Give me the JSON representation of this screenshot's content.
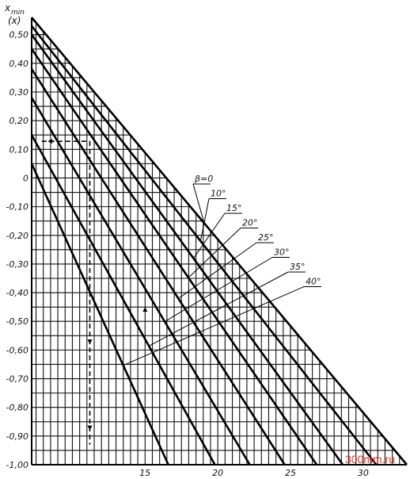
{
  "chart_data": {
    "type": "line",
    "title": "",
    "ylabel_line1": "x",
    "ylabel_sub": "min",
    "ylabel_line2": "(x)",
    "xlabel": "",
    "xlim": [
      7.2,
      33.0
    ],
    "ylim": [
      -1.0,
      0.56
    ],
    "x_ticks": [
      {
        "value": 15,
        "label": "15"
      },
      {
        "value": 20,
        "label": "20"
      },
      {
        "value": 25,
        "label": "25"
      },
      {
        "value": 30,
        "label": "30"
      }
    ],
    "y_ticks": [
      {
        "value": 0.5,
        "label": "0,50"
      },
      {
        "value": 0.4,
        "label": "0,40"
      },
      {
        "value": 0.3,
        "label": "0,30"
      },
      {
        "value": 0.2,
        "label": "0,20"
      },
      {
        "value": 0.1,
        "label": "0,10"
      },
      {
        "value": 0.0,
        "label": "0"
      },
      {
        "value": -0.1,
        "label": "-0,10"
      },
      {
        "value": -0.2,
        "label": "-0,20"
      },
      {
        "value": -0.3,
        "label": "-0,30"
      },
      {
        "value": -0.4,
        "label": "-0,40"
      },
      {
        "value": -0.5,
        "label": "-0,50"
      },
      {
        "value": -0.6,
        "label": "-0,60"
      },
      {
        "value": -0.7,
        "label": "-0,70"
      },
      {
        "value": -0.8,
        "label": "-0,80"
      },
      {
        "value": -0.9,
        "label": "-0,90"
      },
      {
        "value": -1.0,
        "label": "-1,00"
      }
    ],
    "grid": true,
    "series": [
      {
        "name": "β=0",
        "x": [
          7.2,
          33.0
        ],
        "y": [
          0.56,
          -1.0
        ]
      },
      {
        "name": "10°",
        "x": [
          7.2,
          30.9
        ],
        "y": [
          0.53,
          -1.0
        ]
      },
      {
        "name": "15°",
        "x": [
          7.2,
          28.6
        ],
        "y": [
          0.5,
          -1.0
        ]
      },
      {
        "name": "20°",
        "x": [
          7.2,
          26.8
        ],
        "y": [
          0.45,
          -1.0
        ]
      },
      {
        "name": "25°",
        "x": [
          7.2,
          24.6
        ],
        "y": [
          0.38,
          -1.0
        ]
      },
      {
        "name": "30°",
        "x": [
          7.2,
          22.2
        ],
        "y": [
          0.28,
          -1.0
        ]
      },
      {
        "name": "35°",
        "x": [
          7.2,
          19.8
        ],
        "y": [
          0.15,
          -1.0
        ]
      },
      {
        "name": "40°",
        "x": [
          7.2,
          16.6
        ],
        "y": [
          0.05,
          -1.0
        ]
      }
    ],
    "annotation_lines": [
      {
        "x": [
          7.9,
          11.2
        ],
        "y": [
          0.128,
          0.128
        ]
      },
      {
        "x": [
          11.2,
          11.2
        ],
        "y": [
          0.128,
          -0.93
        ]
      }
    ]
  },
  "watermark": "300mm.ru"
}
